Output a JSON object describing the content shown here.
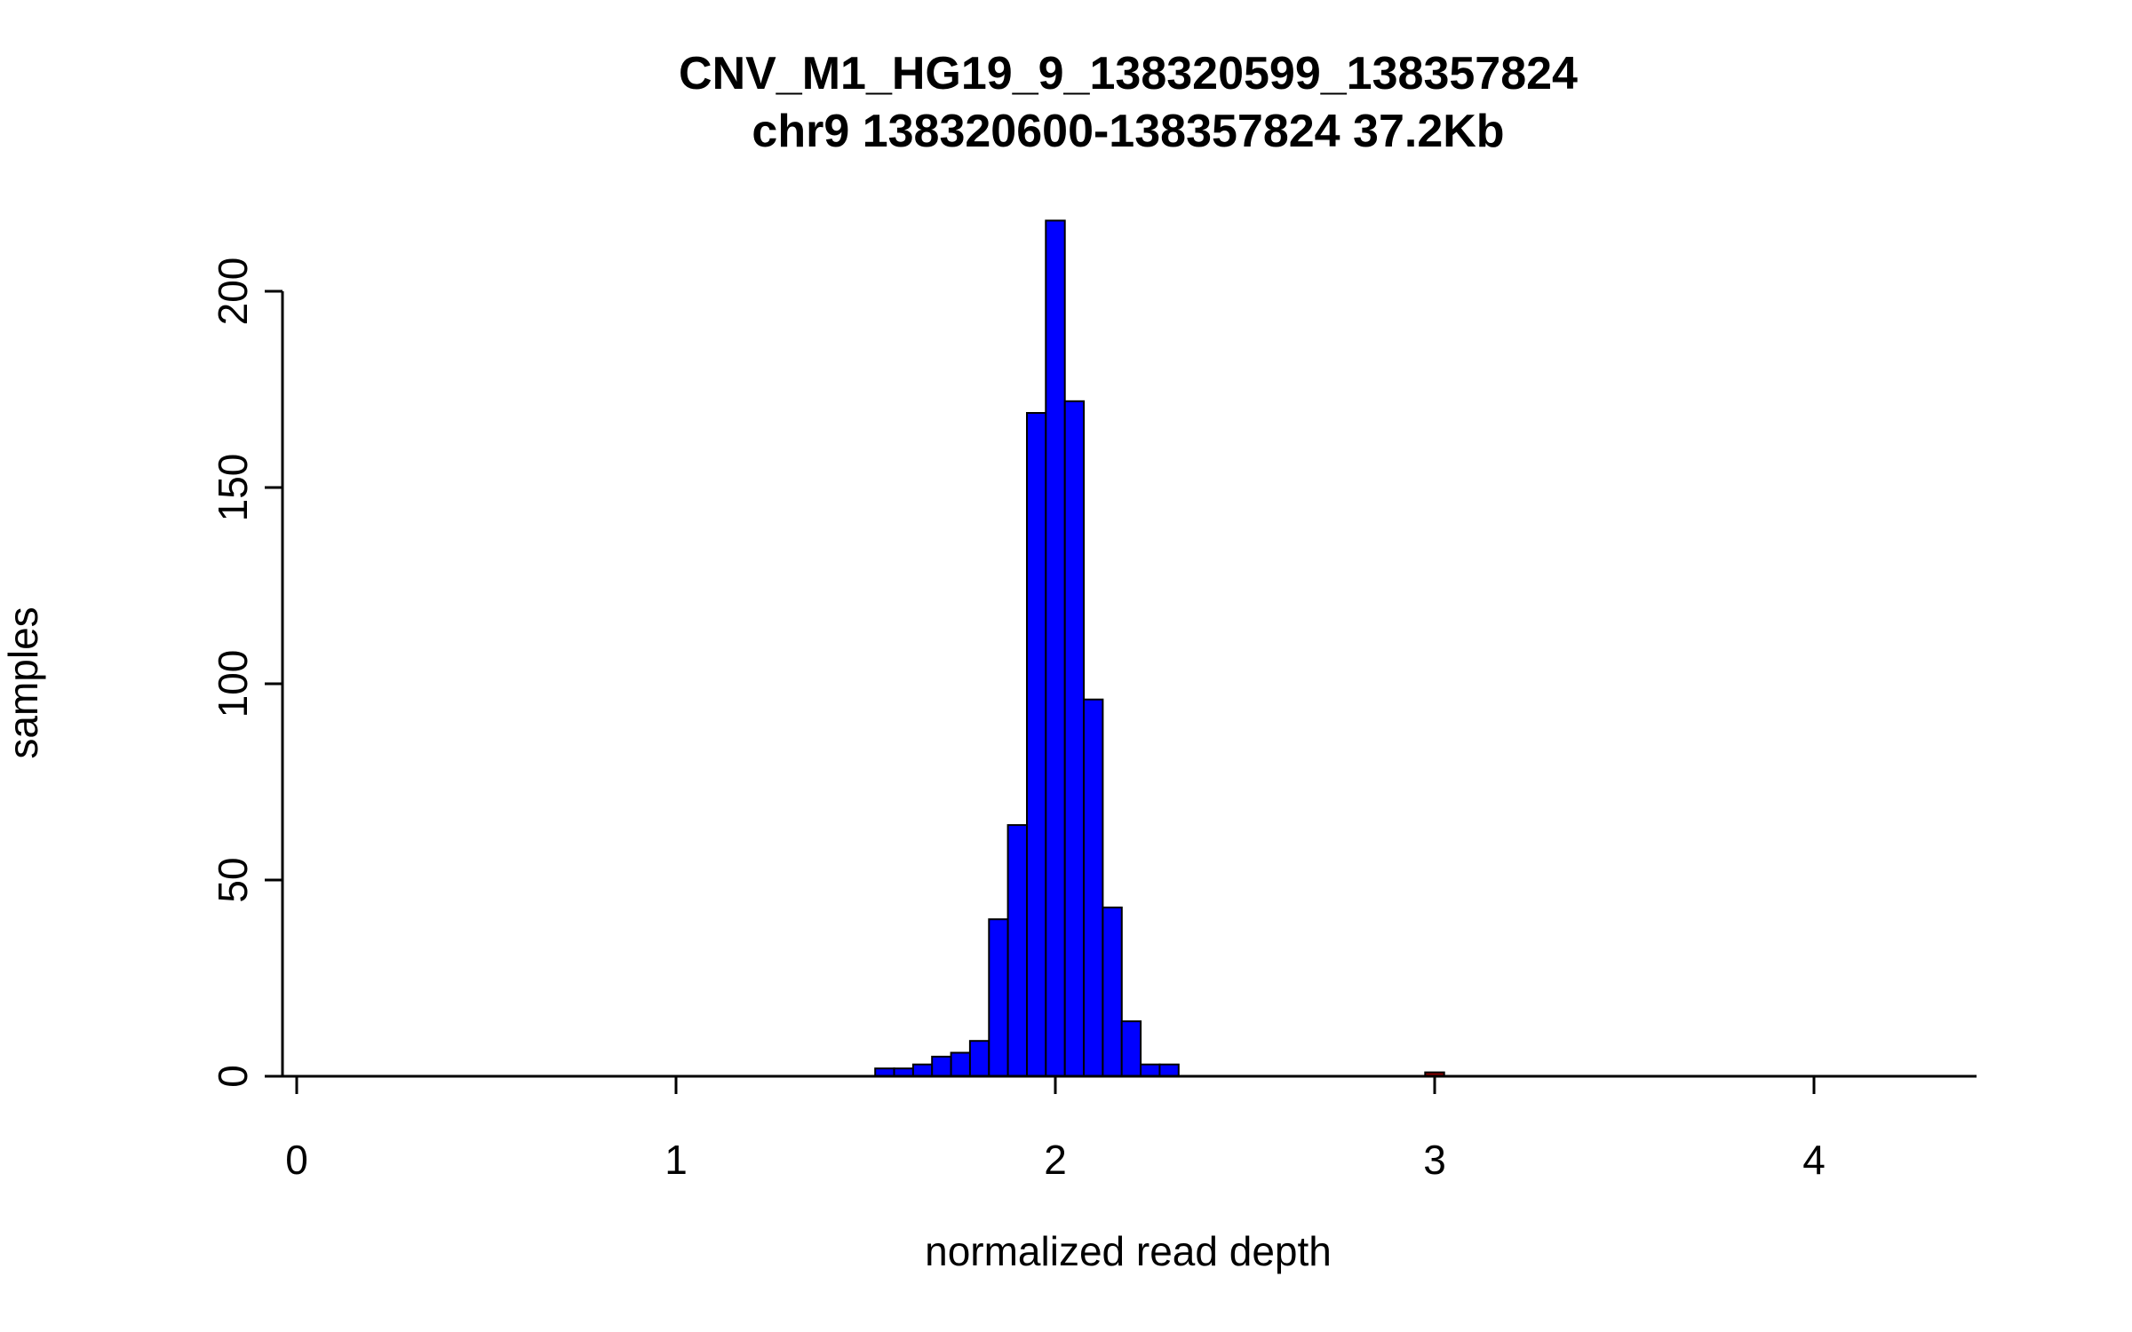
{
  "chart_data": {
    "type": "bar",
    "variant": "histogram",
    "title": "CNV_M1_HG19_9_138320599_138357824",
    "subtitle": "chr9 138320600-138357824 37.2Kb",
    "xlabel": "normalized read depth",
    "ylabel": "samples",
    "xlim": [
      0,
      4.45
    ],
    "ylim": [
      0,
      218
    ],
    "x_ticks": [
      0,
      1,
      2,
      3,
      4
    ],
    "y_ticks": [
      0,
      50,
      100,
      150,
      200
    ],
    "grid": "off",
    "legend": "none",
    "bin_width": 0.05,
    "x_is": "bin_center",
    "bar_color": "#0000FF",
    "bar_stroke_color": "#000000",
    "outlier_color": "#8B0000",
    "bins": [
      {
        "x": 1.55,
        "count": 2
      },
      {
        "x": 1.6,
        "count": 2
      },
      {
        "x": 1.65,
        "count": 3
      },
      {
        "x": 1.7,
        "count": 5
      },
      {
        "x": 1.75,
        "count": 6
      },
      {
        "x": 1.8,
        "count": 9
      },
      {
        "x": 1.85,
        "count": 40
      },
      {
        "x": 1.9,
        "count": 64
      },
      {
        "x": 1.95,
        "count": 169
      },
      {
        "x": 2.0,
        "count": 218
      },
      {
        "x": 2.05,
        "count": 172
      },
      {
        "x": 2.1,
        "count": 96
      },
      {
        "x": 2.15,
        "count": 43
      },
      {
        "x": 2.2,
        "count": 14
      },
      {
        "x": 2.25,
        "count": 3
      },
      {
        "x": 2.3,
        "count": 3
      },
      {
        "x": 3.0,
        "count": 1,
        "color": "#8B0000"
      }
    ]
  }
}
